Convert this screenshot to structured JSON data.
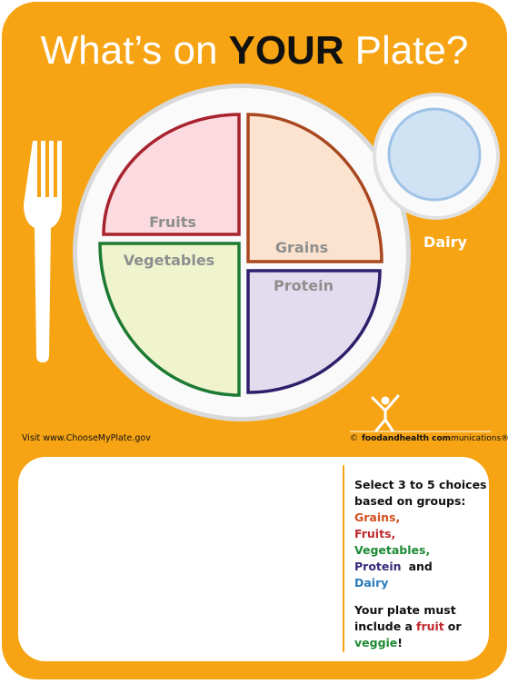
{
  "header": {
    "title_start": "What’s on",
    "title_emphasis": "YOUR",
    "title_end": "Plate?"
  },
  "plate": {
    "sections": [
      {
        "label": "Fruits"
      },
      {
        "label": "Grains"
      },
      {
        "label": "Vegetables"
      },
      {
        "label": "Protein"
      }
    ],
    "cup": {
      "label": "Dairy"
    }
  },
  "footer": {
    "link": "Visit www.ChooseMyPlate.gov",
    "credit_symbol": "©",
    "credit_bold": "foodandhealth com",
    "credit_rest": "munications®"
  },
  "instructions": {
    "intro_1": "Select 3 to 5 choices",
    "intro_2": "based on groups:",
    "groups": [
      "Grains,",
      "Fruits,",
      "Vegetables,",
      "Protein",
      "Dairy"
    ],
    "and": "and",
    "rule_1": "Your plate must",
    "rule_2": "include a",
    "fruit": "fruit",
    "or": "or",
    "veggie": "veggie",
    "end": "!"
  }
}
